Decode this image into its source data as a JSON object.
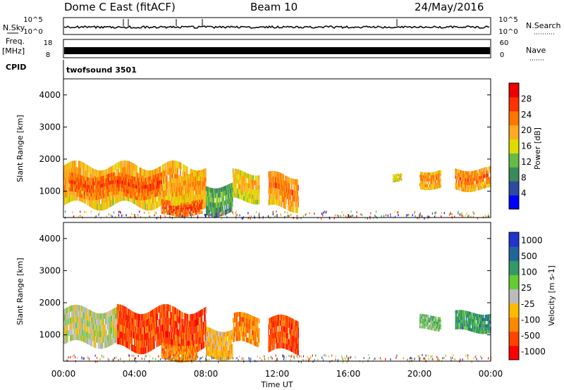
{
  "header": {
    "station": "Dome C East (fitACF)",
    "beam": "Beam 10",
    "date": "24/May/2016"
  },
  "strips": {
    "nsky_label": "N.Sky",
    "nsky_ticks": [
      "10^5",
      "10^0"
    ],
    "nsearch_label": "N.Search",
    "nsearch_ticks": [
      "10^5",
      "10^0"
    ],
    "freq_label": "Freq.",
    "freq_unit": "[MHz]",
    "freq_ticks": [
      "18",
      "8"
    ],
    "nave_label": "Nave",
    "nave_ticks": [
      "60",
      "0"
    ],
    "cpid_label": "CPID",
    "cpid_value": "twofsound 3501"
  },
  "colors": {
    "power_scale": [
      "#0000ff",
      "#2d4aa0",
      "#3a8a5a",
      "#66bb44",
      "#dddd00",
      "#ffaa22",
      "#ff7700",
      "#ff3300",
      "#ee0000"
    ],
    "velocity_scale": [
      "#ff0000",
      "#ff4400",
      "#ff8800",
      "#ffbb00",
      "#bbbbbb",
      "#66cc33",
      "#339966",
      "#226699",
      "#2233cc"
    ]
  },
  "chart_data": [
    {
      "type": "heatmap",
      "name": "power",
      "ylabel": "Slant Range [km]",
      "xlabel": "",
      "ylim": [
        180,
        4500
      ],
      "xlim": [
        0,
        24
      ],
      "yticks": [
        "1000",
        "2000",
        "3000",
        "4000"
      ],
      "ytick_values": [
        1000,
        2000,
        3000,
        4000
      ],
      "colorbar_label": "Power [dB]",
      "colorbar_ticks": [
        "4",
        "8",
        "12",
        "16",
        "20",
        "24",
        "28"
      ],
      "colorbar_range": [
        0,
        32
      ],
      "blobs": [
        {
          "t0": 0.0,
          "t1": 8.0,
          "r0": 550,
          "r1": 1800,
          "v": 22
        },
        {
          "t0": 0.3,
          "t1": 5.5,
          "r0": 800,
          "r1": 1500,
          "v": 27
        },
        {
          "t0": 5.5,
          "t1": 7.8,
          "r0": 250,
          "r1": 700,
          "v": 28
        },
        {
          "t0": 6.0,
          "t1": 8.0,
          "r0": 650,
          "r1": 1500,
          "v": 22
        },
        {
          "t0": 8.0,
          "t1": 9.5,
          "r0": 300,
          "r1": 1200,
          "v": 12
        },
        {
          "t0": 9.5,
          "t1": 11.0,
          "r0": 700,
          "r1": 1600,
          "v": 20
        },
        {
          "t0": 11.5,
          "t1": 13.2,
          "r0": 450,
          "r1": 1500,
          "v": 24
        },
        {
          "t0": 18.5,
          "t1": 19.0,
          "r0": 1300,
          "r1": 1550,
          "v": 19
        },
        {
          "t0": 20.0,
          "t1": 21.2,
          "r0": 1100,
          "r1": 1650,
          "v": 23
        },
        {
          "t0": 22.0,
          "t1": 24.0,
          "r0": 1050,
          "r1": 1700,
          "v": 24
        }
      ]
    },
    {
      "type": "heatmap",
      "name": "velocity",
      "ylabel": "Slant Range [km]",
      "xlabel": "Time UT",
      "ylim": [
        180,
        4500
      ],
      "xlim": [
        0,
        24
      ],
      "xticks": [
        "00:00",
        "04:00",
        "08:00",
        "12:00",
        "16:00",
        "20:00",
        "00:00"
      ],
      "xtick_values": [
        0,
        4,
        8,
        12,
        16,
        20,
        24
      ],
      "yticks": [
        "1000",
        "2000",
        "3000",
        "4000"
      ],
      "ytick_values": [
        1000,
        2000,
        3000,
        4000
      ],
      "colorbar_label": "Velocity [m s-1]",
      "colorbar_ticks": [
        "1000",
        "500",
        "100",
        "25",
        "-25",
        "-100",
        "-500",
        "-1000"
      ],
      "blobs": [
        {
          "t0": 0.0,
          "t1": 3.0,
          "r0": 700,
          "r1": 1800,
          "v": 4
        },
        {
          "t0": 3.0,
          "t1": 8.0,
          "r0": 550,
          "r1": 1800,
          "v": 1
        },
        {
          "t0": 5.5,
          "t1": 7.5,
          "r0": 200,
          "r1": 700,
          "v": 2
        },
        {
          "t0": 8.0,
          "t1": 9.5,
          "r0": 300,
          "r1": 1200,
          "v": 3
        },
        {
          "t0": 9.5,
          "t1": 11.0,
          "r0": 700,
          "r1": 1600,
          "v": 2
        },
        {
          "t0": 11.5,
          "t1": 13.2,
          "r0": 450,
          "r1": 1500,
          "v": 1
        },
        {
          "t0": 20.0,
          "t1": 21.2,
          "r0": 1150,
          "r1": 1600,
          "v": 5
        },
        {
          "t0": 22.0,
          "t1": 24.0,
          "r0": 1100,
          "r1": 1700,
          "v": 6
        }
      ]
    }
  ]
}
